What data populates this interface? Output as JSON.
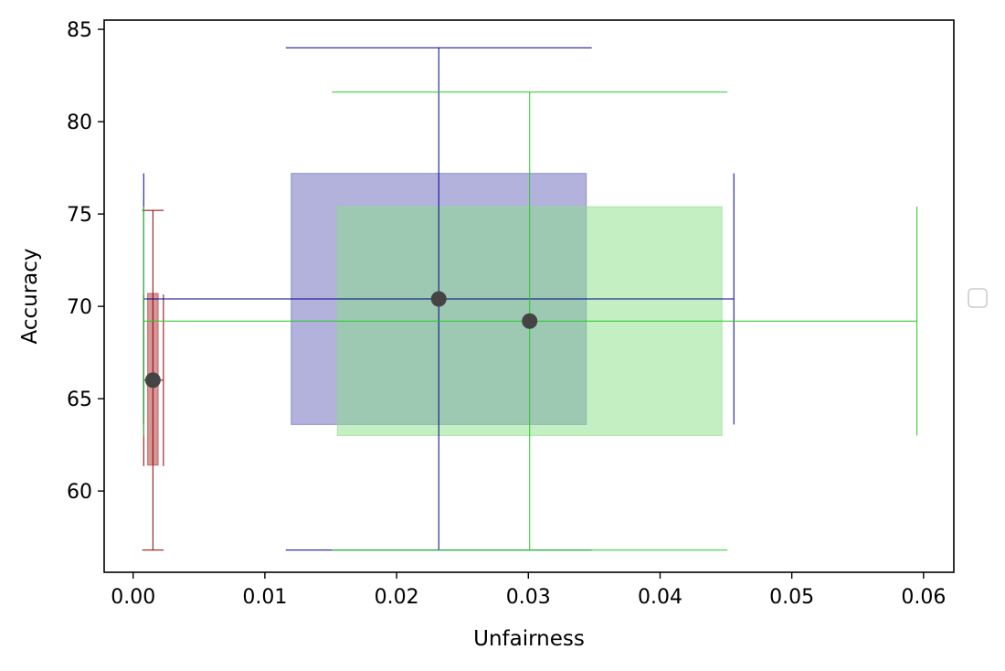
{
  "chart_data": {
    "type": "scatter",
    "title": "",
    "xlabel": "Unfairness",
    "ylabel": "Accuracy",
    "xlim": [
      -0.0022,
      0.0623
    ],
    "ylim": [
      55.6,
      85.5
    ],
    "xticks": [
      0.0,
      0.01,
      0.02,
      0.03,
      0.04,
      0.05,
      0.06
    ],
    "xtick_labels": [
      "0.00",
      "0.01",
      "0.02",
      "0.03",
      "0.04",
      "0.05",
      "0.06"
    ],
    "yticks": [
      60,
      65,
      70,
      75,
      80,
      85
    ],
    "ytick_labels": [
      "60",
      "65",
      "70",
      "75",
      "80",
      "85"
    ],
    "grid": false,
    "legend": {
      "placement": "right",
      "entries": []
    },
    "point_color": "#444444",
    "series": [
      {
        "color": "#8b0000",
        "fill_color": "#b03030",
        "point": [
          0.0015,
          66.0
        ],
        "box_x": [
          0.0011,
          0.0019
        ],
        "box_y": [
          61.4,
          70.7
        ],
        "outer_x": [
          0.0008,
          0.0023
        ],
        "outer_y": [
          56.8,
          75.2
        ]
      },
      {
        "color": "#00008b",
        "fill_color": "#6666bb",
        "point": [
          0.0232,
          70.4
        ],
        "box_x": [
          0.012,
          0.0344
        ],
        "box_y": [
          63.6,
          77.2
        ],
        "outer_x": [
          0.0008,
          0.0456
        ],
        "outer_y": [
          56.8,
          84.0
        ]
      },
      {
        "color": "#22cc22",
        "fill_color": "#88e088",
        "point": [
          0.0301,
          69.2
        ],
        "box_x": [
          0.0155,
          0.0447
        ],
        "box_y": [
          63.0,
          75.4
        ],
        "outer_x": [
          0.0008,
          0.0595
        ],
        "outer_y": [
          56.8,
          81.6
        ]
      }
    ]
  }
}
